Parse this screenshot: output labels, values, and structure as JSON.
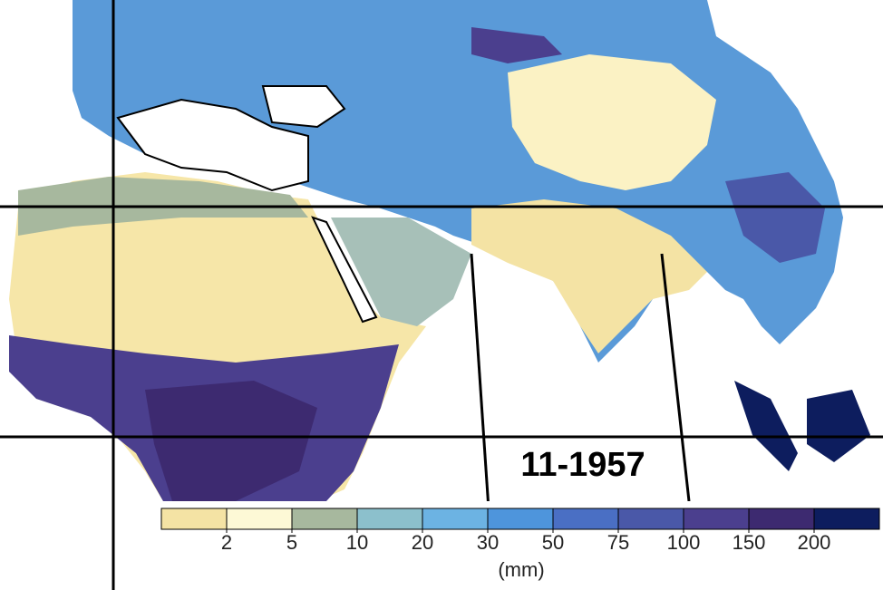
{
  "date": "11-1957",
  "colorbar": {
    "colors": [
      "#f4e3a4",
      "#fdf9d6",
      "#a7b89e",
      "#8cc0cc",
      "#6cb3e3",
      "#4e95dc",
      "#4a6fc4",
      "#4a58a8",
      "#4b3f8e",
      "#3d2a70",
      "#0d1d5e"
    ],
    "ticks": [
      2,
      5,
      10,
      20,
      30,
      50,
      75,
      100,
      150,
      200
    ],
    "unit": "(mm)"
  }
}
